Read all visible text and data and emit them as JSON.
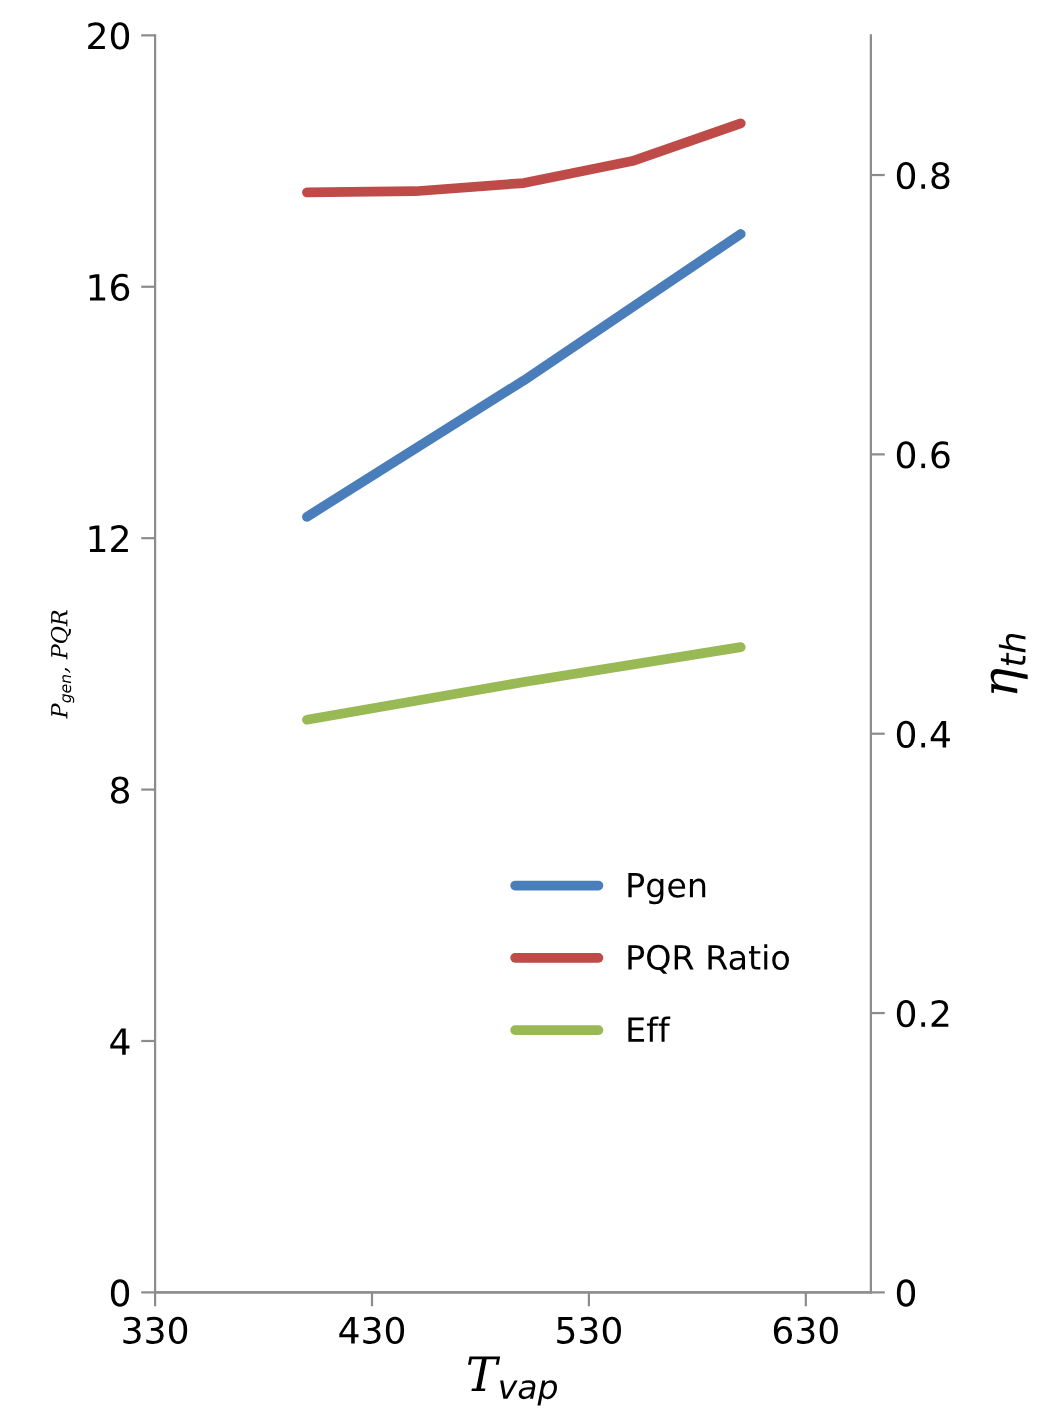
{
  "chart_data": {
    "type": "line",
    "xlabel": "T$_{vap}$",
    "ylabel": "P$_{gen}$, PQR",
    "y2label": "η$_{th}$",
    "x": [
      400,
      450,
      500,
      550,
      600
    ],
    "series": [
      {
        "name": "Pgen",
        "color": "#4a7ebb",
        "values": [
          12.34,
          null,
          14.51,
          null,
          16.84
        ]
      },
      {
        "name": "PQR Ratio",
        "color": "#be4b48",
        "values": [
          17.5,
          17.52,
          17.65,
          18.0,
          18.6
        ]
      },
      {
        "name": "Eff",
        "color": "#98b954",
        "axis": "y2",
        "values": [
          0.41,
          null,
          0.437,
          null,
          0.462
        ]
      }
    ],
    "xlim": [
      330,
      660
    ],
    "xticks": [
      330,
      430,
      530,
      630
    ],
    "ylim": [
      0,
      20
    ],
    "yticks": [
      0,
      4,
      8,
      12,
      16,
      20
    ],
    "y2lim": [
      0,
      0.9
    ],
    "y2ticks": [
      0,
      0.2,
      0.4,
      0.6,
      0.8
    ],
    "grid": false,
    "legend": "lower right",
    "marker": "none",
    "line_style": "solid"
  }
}
